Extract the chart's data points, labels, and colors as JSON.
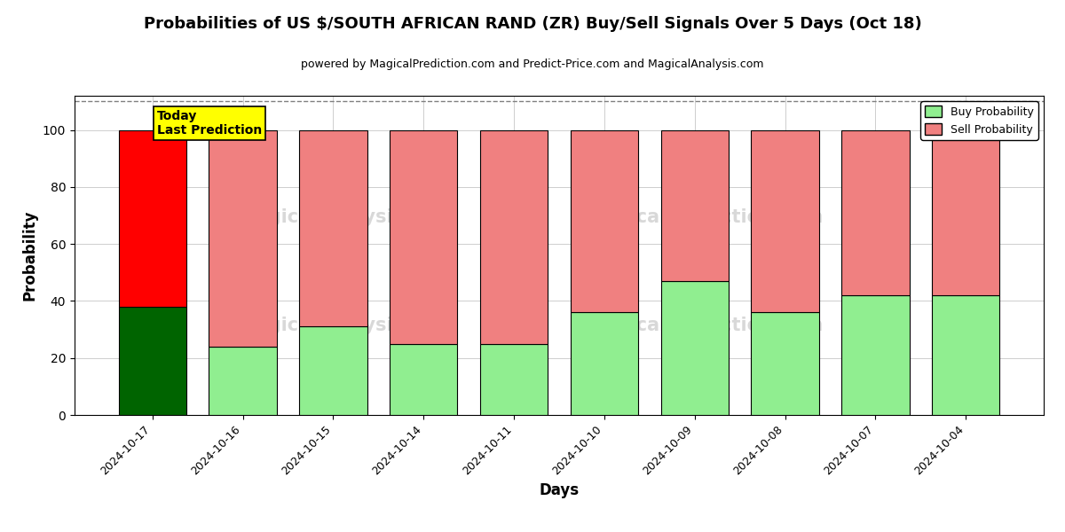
{
  "title": "Probabilities of US $/SOUTH AFRICAN RAND (ZR) Buy/Sell Signals Over 5 Days (Oct 18)",
  "subtitle": "powered by MagicalPrediction.com and Predict-Price.com and MagicalAnalysis.com",
  "xlabel": "Days",
  "ylabel": "Probability",
  "categories": [
    "2024-10-17",
    "2024-10-16",
    "2024-10-15",
    "2024-10-14",
    "2024-10-11",
    "2024-10-10",
    "2024-10-09",
    "2024-10-08",
    "2024-10-07",
    "2024-10-04"
  ],
  "buy_values": [
    38,
    24,
    31,
    25,
    25,
    36,
    47,
    36,
    42,
    42
  ],
  "sell_values": [
    62,
    76,
    69,
    75,
    75,
    64,
    53,
    64,
    58,
    58
  ],
  "buy_color_today": "#006400",
  "sell_color_today": "#ff0000",
  "buy_color_rest": "#90ee90",
  "sell_color_rest": "#f08080",
  "today_label_text": "Today\nLast Prediction",
  "today_label_bg": "#ffff00",
  "legend_buy": "Buy Probability",
  "legend_sell": "Sell Probability",
  "ylim": [
    0,
    112
  ],
  "yticks": [
    0,
    20,
    40,
    60,
    80,
    100
  ],
  "dashed_line_y": 110,
  "background_color": "#ffffff",
  "grid_color": "#bbbbbb"
}
